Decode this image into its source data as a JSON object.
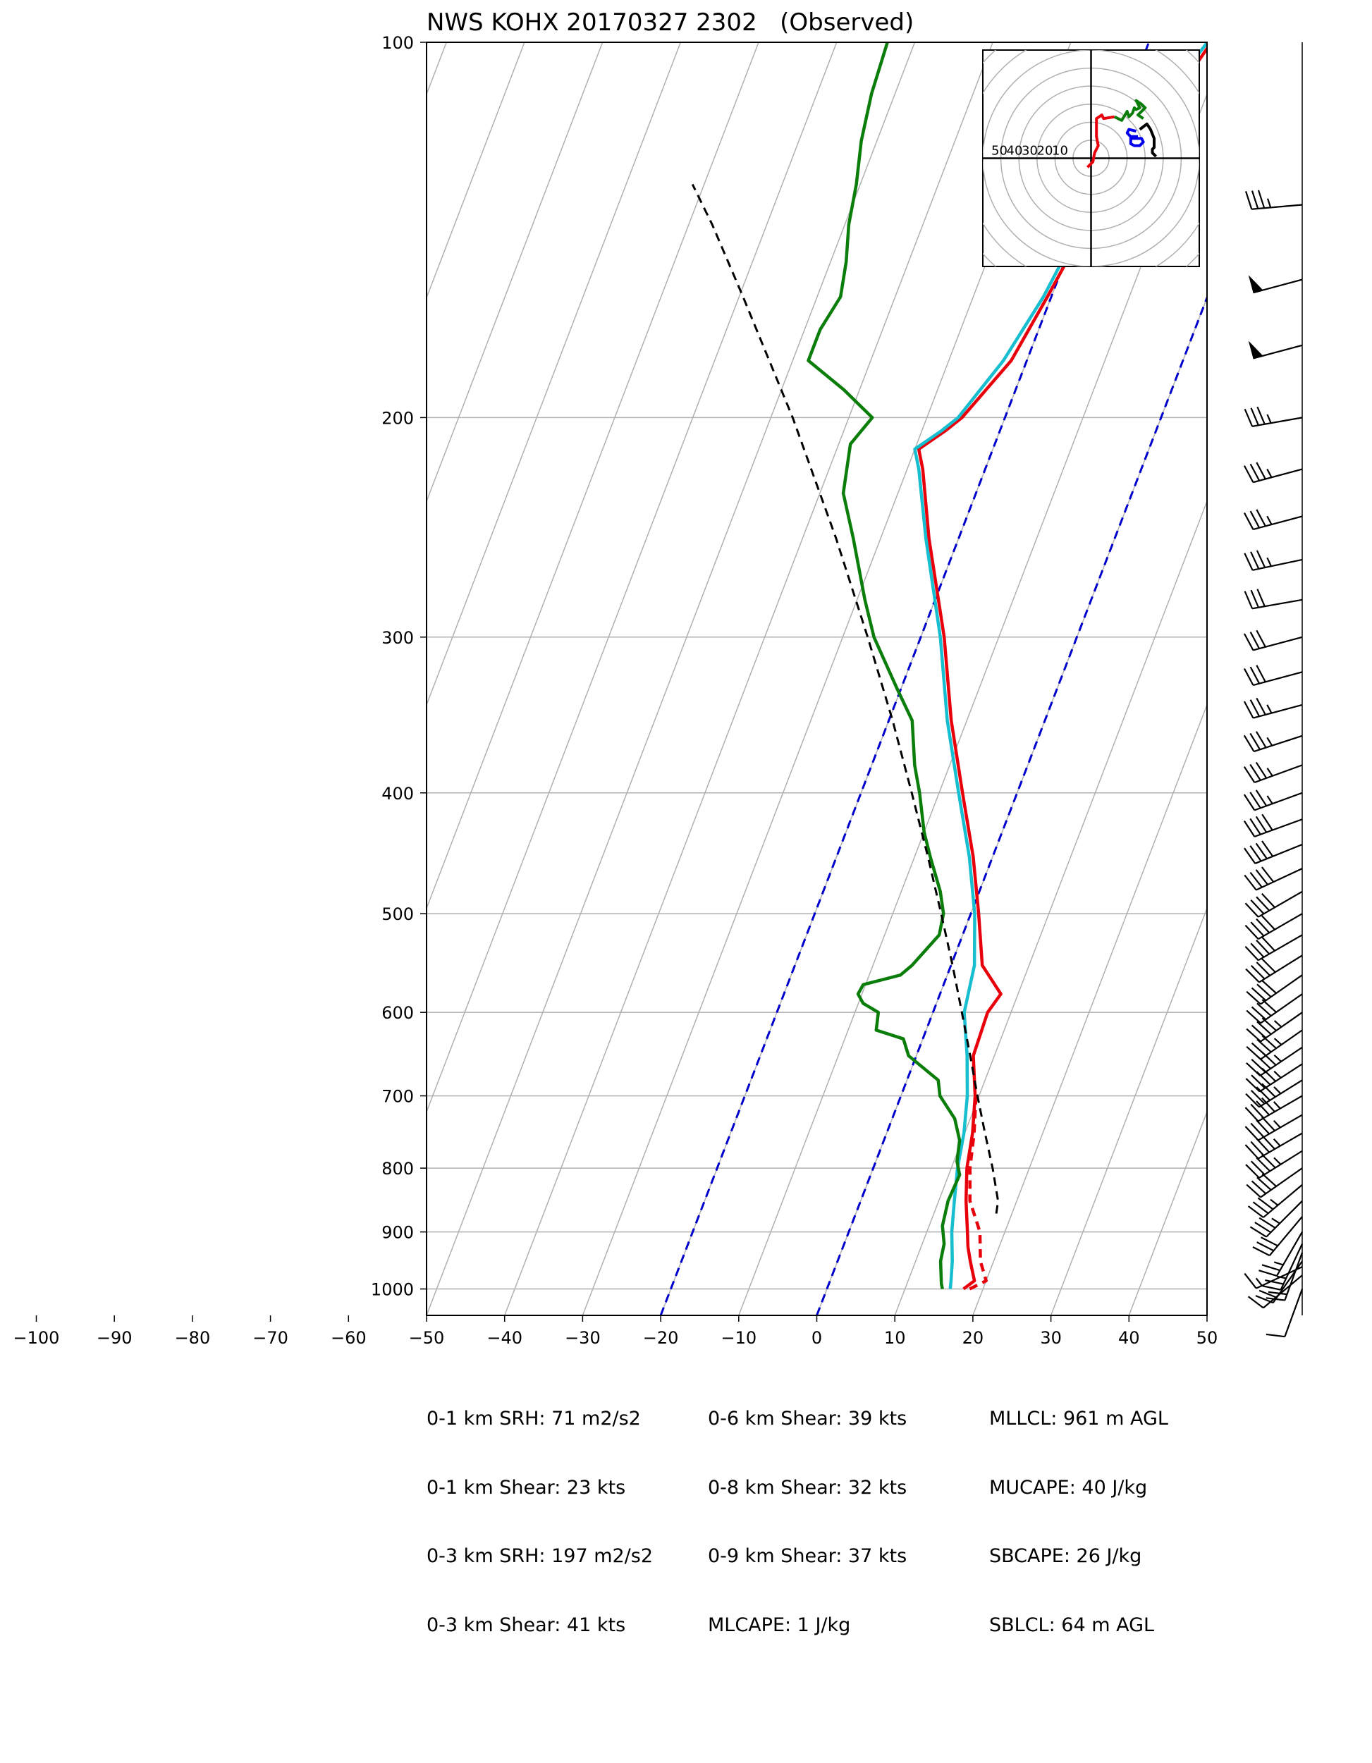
{
  "title": "NWS KOHX 20170327 2302   (Observed)",
  "colors": {
    "temperature": "#e8000b",
    "dewpoint": "#0a7d0a",
    "virtual_temperature": "#17becf",
    "parcel": "#000000",
    "isotherm_highlight": "#0000cc",
    "grid": "#b0b0b0",
    "hodo_0_1": "#e8000b",
    "hodo_1_3": "#0a7d0a",
    "hodo_3_6": "#0000ee",
    "hodo_6_9": "#000000"
  },
  "chart_data": {
    "type": "line",
    "x_ticks": [
      "−100",
      "−90",
      "−80",
      "−70",
      "−60",
      "−50",
      "−40",
      "−30",
      "−20",
      "−10",
      "0",
      "10",
      "20",
      "30",
      "40",
      "50"
    ],
    "xlim": [
      -50,
      50
    ],
    "ylim": [
      1050,
      100
    ],
    "y_scale": "log",
    "y_ticks": [
      "100",
      "200",
      "300",
      "400",
      "500",
      "600",
      "700",
      "800",
      "900",
      "1000"
    ],
    "highlight_isotherms": [
      -20,
      0
    ],
    "series": [
      {
        "key": "temperature",
        "style": "solid",
        "points": [
          [
            1000,
            17.5
          ],
          [
            985,
            18.5
          ],
          [
            950,
            17
          ],
          [
            925,
            16
          ],
          [
            900,
            15.2
          ],
          [
            850,
            13.5
          ],
          [
            800,
            12
          ],
          [
            750,
            11
          ],
          [
            700,
            9.5
          ],
          [
            650,
            7.3
          ],
          [
            600,
            7
          ],
          [
            580,
            7.8
          ],
          [
            550,
            4
          ],
          [
            500,
            1
          ],
          [
            450,
            -2.5
          ],
          [
            400,
            -7
          ],
          [
            350,
            -12
          ],
          [
            300,
            -17
          ],
          [
            250,
            -23.8
          ],
          [
            220,
            -28
          ],
          [
            212,
            -29.5
          ],
          [
            205,
            -27
          ],
          [
            200,
            -25.5
          ],
          [
            180,
            -22
          ],
          [
            160,
            -20.5
          ],
          [
            140,
            -19
          ],
          [
            120,
            -16
          ],
          [
            110,
            -14
          ],
          [
            100,
            -12
          ]
        ]
      },
      {
        "key": "temperature_alt",
        "style": "dashed",
        "points": [
          [
            1000,
            18.3
          ],
          [
            985,
            20
          ],
          [
            950,
            18.3
          ],
          [
            900,
            16.8
          ],
          [
            850,
            14
          ],
          [
            800,
            12.4
          ],
          [
            750,
            11.2
          ],
          [
            700,
            9.6
          ]
        ]
      },
      {
        "key": "virtual_temperature",
        "style": "solid",
        "points": [
          [
            1000,
            15.8
          ],
          [
            985,
            15.5
          ],
          [
            950,
            14.7
          ],
          [
            900,
            13.2
          ],
          [
            850,
            12
          ],
          [
            800,
            10.8
          ],
          [
            750,
            9.9
          ],
          [
            700,
            8.5
          ],
          [
            650,
            6.5
          ],
          [
            600,
            4
          ],
          [
            550,
            3
          ],
          [
            500,
            0.5
          ],
          [
            450,
            -3
          ],
          [
            400,
            -7.5
          ],
          [
            350,
            -12.5
          ],
          [
            300,
            -17.5
          ],
          [
            250,
            -24.2
          ],
          [
            220,
            -28.5
          ],
          [
            212,
            -30
          ],
          [
            205,
            -27.5
          ],
          [
            200,
            -26
          ],
          [
            180,
            -23
          ],
          [
            160,
            -21
          ],
          [
            140,
            -19.7
          ],
          [
            120,
            -17
          ],
          [
            110,
            -15
          ],
          [
            100,
            -12.5
          ]
        ]
      },
      {
        "key": "dewpoint",
        "style": "solid",
        "points": [
          [
            1000,
            14.8
          ],
          [
            990,
            14.4
          ],
          [
            950,
            13.2
          ],
          [
            920,
            12.8
          ],
          [
            890,
            11.7
          ],
          [
            850,
            11.2
          ],
          [
            810,
            11.4
          ],
          [
            790,
            10.4
          ],
          [
            760,
            9.7
          ],
          [
            730,
            8
          ],
          [
            700,
            5
          ],
          [
            680,
            4
          ],
          [
            650,
            -1
          ],
          [
            630,
            -2.5
          ],
          [
            620,
            -6.4
          ],
          [
            600,
            -7
          ],
          [
            590,
            -9.4
          ],
          [
            580,
            -10.5
          ],
          [
            570,
            -10.3
          ],
          [
            560,
            -6
          ],
          [
            550,
            -5
          ],
          [
            520,
            -3
          ],
          [
            500,
            -3.5
          ],
          [
            480,
            -5
          ],
          [
            450,
            -8
          ],
          [
            430,
            -10
          ],
          [
            400,
            -12.5
          ],
          [
            380,
            -14.5
          ],
          [
            350,
            -17
          ],
          [
            330,
            -20.5
          ],
          [
            300,
            -26
          ],
          [
            280,
            -29
          ],
          [
            250,
            -33.5
          ],
          [
            230,
            -37
          ],
          [
            210,
            -38.5
          ],
          [
            200,
            -37
          ],
          [
            190,
            -42
          ],
          [
            180,
            -48
          ],
          [
            170,
            -48
          ],
          [
            160,
            -47
          ],
          [
            150,
            -48
          ],
          [
            140,
            -49.5
          ],
          [
            130,
            -50.5
          ],
          [
            120,
            -52
          ],
          [
            110,
            -53
          ],
          [
            100,
            -53.5
          ]
        ]
      },
      {
        "key": "parcel",
        "style": "dashed",
        "points": [
          [
            870,
            18
          ],
          [
            850,
            17.6
          ],
          [
            800,
            15.3
          ],
          [
            750,
            12.6
          ],
          [
            700,
            9.8
          ],
          [
            650,
            6.9
          ],
          [
            600,
            3.7
          ],
          [
            550,
            0.2
          ],
          [
            500,
            -3.8
          ],
          [
            450,
            -8.3
          ],
          [
            400,
            -13.5
          ],
          [
            350,
            -19.5
          ],
          [
            300,
            -26.8
          ],
          [
            250,
            -35.7
          ],
          [
            200,
            -47.2
          ],
          [
            180,
            -53
          ],
          [
            160,
            -59.5
          ],
          [
            140,
            -67
          ],
          [
            130,
            -71.5
          ]
        ]
      }
    ],
    "hodograph": {
      "ring_labels": [
        "50",
        "40",
        "30",
        "20",
        "10"
      ],
      "max_speed": 60,
      "ring_step": 10,
      "segments": [
        {
          "key": "hodo_0_1",
          "points": [
            [
              -2,
              -5
            ],
            [
              1,
              -2
            ],
            [
              2,
              3
            ],
            [
              4,
              7
            ],
            [
              3,
              12
            ],
            [
              3,
              22
            ],
            [
              6,
              24
            ],
            [
              7,
              22
            ],
            [
              13,
              23
            ]
          ]
        },
        {
          "key": "hodo_1_3",
          "points": [
            [
              13,
              23
            ],
            [
              17,
              21
            ],
            [
              20,
              26
            ],
            [
              21,
              23
            ],
            [
              23,
              25
            ],
            [
              24,
              28
            ],
            [
              25,
              27
            ],
            [
              27,
              28
            ],
            [
              25,
              32
            ],
            [
              28,
              30
            ],
            [
              30,
              28
            ],
            [
              26,
              24
            ],
            [
              29,
              22
            ]
          ]
        },
        {
          "key": "hodo_3_6",
          "points": [
            [
              25,
              15
            ],
            [
              21,
              16
            ],
            [
              20,
              14
            ],
            [
              23,
              11
            ],
            [
              28,
              11
            ],
            [
              29,
              9
            ],
            [
              27,
              7
            ],
            [
              24,
              7
            ],
            [
              22,
              8
            ],
            [
              22,
              12
            ],
            [
              26,
              12
            ]
          ]
        },
        {
          "key": "hodo_6_9",
          "points": [
            [
              27,
              16
            ],
            [
              31,
              19
            ],
            [
              33,
              16
            ],
            [
              35,
              11
            ],
            [
              35,
              6
            ],
            [
              34,
              5
            ],
            [
              34,
              3
            ],
            [
              36,
              1
            ]
          ]
        }
      ]
    },
    "wind_barbs": [
      [
        1000,
        200,
        10
      ],
      [
        975,
        230,
        12
      ],
      [
        960,
        245,
        14
      ],
      [
        950,
        215,
        18
      ],
      [
        935,
        200,
        20
      ],
      [
        920,
        205,
        25
      ],
      [
        900,
        210,
        25
      ],
      [
        875,
        220,
        30
      ],
      [
        850,
        225,
        35
      ],
      [
        825,
        230,
        35
      ],
      [
        800,
        235,
        40
      ],
      [
        775,
        238,
        45
      ],
      [
        750,
        240,
        45
      ],
      [
        725,
        240,
        45
      ],
      [
        700,
        240,
        45
      ],
      [
        680,
        238,
        45
      ],
      [
        660,
        237,
        45
      ],
      [
        640,
        236,
        45
      ],
      [
        620,
        235,
        45
      ],
      [
        600,
        235,
        45
      ],
      [
        580,
        235,
        40
      ],
      [
        560,
        235,
        40
      ],
      [
        540,
        238,
        40
      ],
      [
        520,
        240,
        40
      ],
      [
        500,
        240,
        40
      ],
      [
        480,
        240,
        40
      ],
      [
        460,
        245,
        40
      ],
      [
        440,
        248,
        40
      ],
      [
        420,
        250,
        40
      ],
      [
        400,
        250,
        35
      ],
      [
        380,
        250,
        35
      ],
      [
        360,
        252,
        35
      ],
      [
        340,
        255,
        35
      ],
      [
        320,
        255,
        30
      ],
      [
        300,
        255,
        30
      ],
      [
        280,
        260,
        30
      ],
      [
        260,
        258,
        35
      ],
      [
        240,
        255,
        35
      ],
      [
        220,
        255,
        35
      ],
      [
        200,
        260,
        35
      ],
      [
        175,
        255,
        50
      ],
      [
        155,
        255,
        50
      ],
      [
        135,
        265,
        35
      ]
    ]
  },
  "stats": {
    "col1": [
      "0-1 km SRH: 71 m2/s2",
      "0-1 km Shear: 23 kts",
      "0-3 km SRH: 197 m2/s2",
      "0-3 km Shear: 41 kts"
    ],
    "col2": [
      "0-6 km Shear: 39 kts",
      "0-8 km Shear: 32 kts",
      "0-9 km Shear: 37 kts",
      "MLCAPE: 1 J/kg"
    ],
    "col3": [
      "MLLCL: 961 m AGL",
      "MUCAPE: 40 J/kg",
      "SBCAPE: 26 J/kg",
      "SBLCL: 64 m AGL"
    ]
  }
}
